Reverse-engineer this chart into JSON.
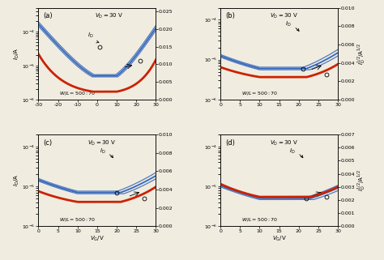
{
  "bg_color": "#f0ece0",
  "blue_color": "#3366bb",
  "red_color": "#cc2200",
  "panels": [
    "(a)",
    "(b)",
    "(c)",
    "(d)"
  ],
  "panel_a": {
    "xlim": [
      -30,
      30
    ],
    "xticks": [
      -30,
      -20,
      -10,
      0,
      10,
      20,
      30
    ],
    "ylim_log": [
      1e-06,
      0.0005
    ],
    "ylim_sqrt": [
      0,
      0.026
    ],
    "sqrt_ticks": [
      0,
      0.005,
      0.01,
      0.015,
      0.02,
      0.025
    ],
    "vmin": 5,
    "vth_n": 10,
    "vth_p": -2,
    "I0": 2.5e-06,
    "slope_n": 0.085,
    "slope_p": 0.065
  },
  "panel_b": {
    "xlim": [
      0,
      30
    ],
    "xticks": [
      0,
      5,
      10,
      15,
      20,
      25,
      30
    ],
    "ylim_log": [
      1e-06,
      0.0002
    ],
    "ylim_sqrt": [
      0,
      0.01
    ],
    "sqrt_ticks": [
      0,
      0.002,
      0.004,
      0.006,
      0.008,
      0.01
    ],
    "vmin": 17,
    "vth_n": 22,
    "I0": 3e-06,
    "slope_n": 0.075
  },
  "panel_c": {
    "xlim": [
      0,
      30
    ],
    "xticks": [
      0,
      5,
      10,
      15,
      20,
      25,
      30
    ],
    "ylim_log": [
      1e-06,
      0.0002
    ],
    "ylim_sqrt": [
      0,
      0.01
    ],
    "sqrt_ticks": [
      0,
      0.002,
      0.004,
      0.006,
      0.008,
      0.01
    ],
    "vmin": 16,
    "vth_n": 21,
    "I0": 3.5e-06,
    "slope_n": 0.07
  },
  "panel_d": {
    "xlim": [
      0,
      30
    ],
    "xticks": [
      0,
      5,
      10,
      15,
      20,
      25,
      30
    ],
    "ylim_log": [
      1e-06,
      0.0002
    ],
    "ylim_sqrt": [
      0,
      0.007
    ],
    "sqrt_ticks": [
      0,
      0.001,
      0.002,
      0.003,
      0.004,
      0.005,
      0.006,
      0.007
    ],
    "vmin": 17,
    "vth_n": 23,
    "I0": 2.5e-06,
    "slope_n": 0.06
  }
}
